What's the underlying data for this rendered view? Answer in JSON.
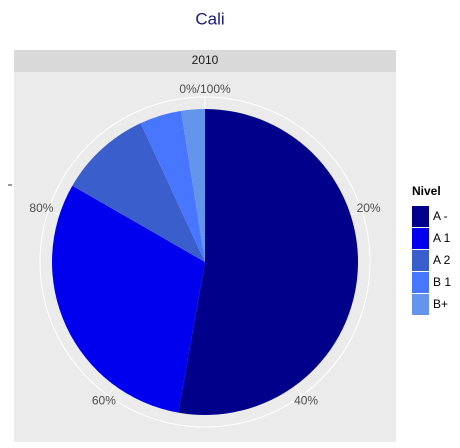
{
  "chart_data": {
    "type": "pie",
    "title": "Cali",
    "facet": "2010",
    "legend_title": "Nivel",
    "categories": [
      "A -",
      "A 1",
      "A 2",
      "B 1",
      "B+"
    ],
    "values": [
      52.8,
      30.5,
      9.8,
      4.4,
      2.5
    ],
    "colors": [
      "#00008b",
      "#0000ee",
      "#3a5fcd",
      "#4876ff",
      "#6495ed"
    ],
    "ticks": [
      {
        "value": 0,
        "label": "0%/100%"
      },
      {
        "value": 20,
        "label": "20%"
      },
      {
        "value": 40,
        "label": "40%"
      },
      {
        "value": 60,
        "label": "60%"
      },
      {
        "value": 80,
        "label": "80%"
      }
    ],
    "total": 100
  }
}
